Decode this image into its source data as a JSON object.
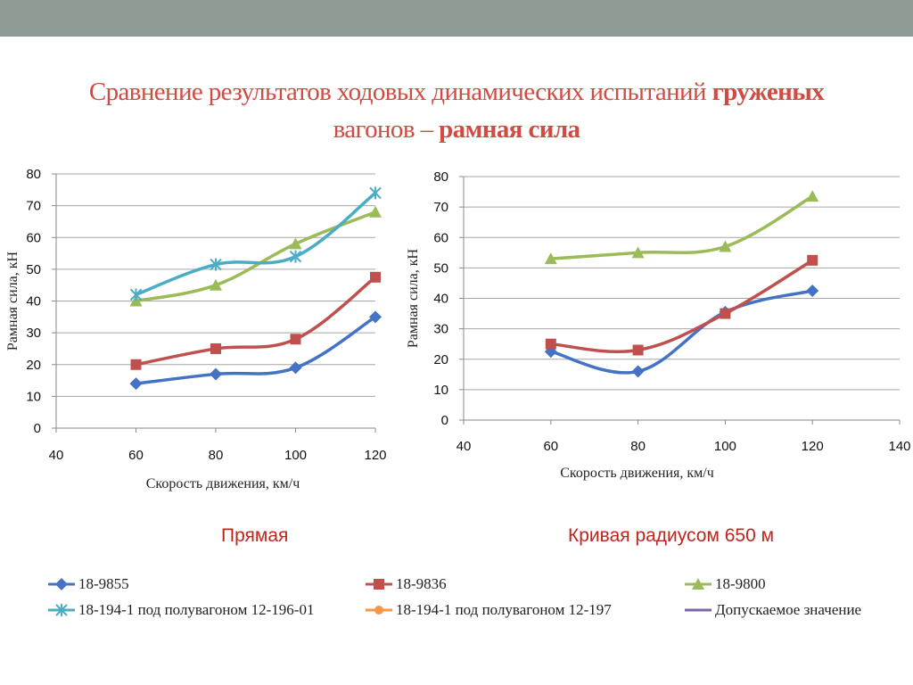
{
  "slide": {
    "title_part1": "Сравнение результатов ходовых динамических испытаний",
    "title_bold1": "груженых",
    "title_part2": "вагонов –",
    "title_bold2": "рамная сила"
  },
  "colors": {
    "18-9855": "#4472c4",
    "18-9836": "#c0504d",
    "18-9800": "#9bbb59",
    "18-194-1 под полувагоном 12-196-01": "#4bacc6",
    "18-194-1 под полувагоном 12-197": "#f79646",
    "Допускаемое значение": "#8064a2"
  },
  "legend": {
    "items": [
      {
        "label": "18-9855",
        "marker": "diamond"
      },
      {
        "label": "18-9836",
        "marker": "square"
      },
      {
        "label": "18-9800",
        "marker": "triangle"
      },
      {
        "label": "18-194-1 под полувагоном 12-196-01",
        "marker": "star"
      },
      {
        "label": "18-194-1 под полувагоном 12-197",
        "marker": "circle"
      },
      {
        "label": "Допускаемое значение",
        "marker": "none"
      }
    ]
  },
  "chart_data": [
    {
      "type": "line",
      "caption": "Прямая",
      "xlabel": "Скорость движения, км/ч",
      "ylabel": "Рамная сила, кН",
      "xlim": [
        40,
        120
      ],
      "ylim": [
        0,
        80
      ],
      "xticks": [
        40,
        60,
        80,
        100,
        120
      ],
      "yticks": [
        0,
        10,
        20,
        30,
        40,
        50,
        60,
        70,
        80
      ],
      "grid": "horizontal",
      "series": [
        {
          "name": "18-9855",
          "x": [
            60,
            80,
            100,
            120
          ],
          "y": [
            14,
            17,
            19,
            35
          ]
        },
        {
          "name": "18-9836",
          "x": [
            60,
            80,
            100,
            120
          ],
          "y": [
            20,
            25,
            28,
            47.5
          ]
        },
        {
          "name": "18-9800",
          "x": [
            60,
            80,
            100,
            120
          ],
          "y": [
            40,
            45,
            58,
            68
          ]
        },
        {
          "name": "18-194-1 под полувагоном 12-196-01",
          "x": [
            60,
            80,
            100,
            120
          ],
          "y": [
            42,
            51.5,
            54,
            74
          ]
        }
      ]
    },
    {
      "type": "line",
      "caption": "Кривая радиусом 650 м",
      "xlabel": "Скорость движения, км/ч",
      "ylabel": "Рамная сила, кН",
      "xlim": [
        40,
        140
      ],
      "ylim": [
        0,
        80
      ],
      "xticks": [
        40,
        60,
        80,
        100,
        120,
        140
      ],
      "yticks": [
        0,
        10,
        20,
        30,
        40,
        50,
        60,
        70,
        80
      ],
      "grid": "horizontal",
      "series": [
        {
          "name": "18-9855",
          "x": [
            60,
            80,
            100,
            120
          ],
          "y": [
            22.5,
            16,
            35.5,
            42.5
          ]
        },
        {
          "name": "18-9836",
          "x": [
            60,
            80,
            100,
            120
          ],
          "y": [
            25,
            23,
            35,
            52.5
          ]
        },
        {
          "name": "18-9800",
          "x": [
            60,
            80,
            100,
            120
          ],
          "y": [
            53,
            55,
            57,
            73.5
          ]
        }
      ]
    }
  ]
}
